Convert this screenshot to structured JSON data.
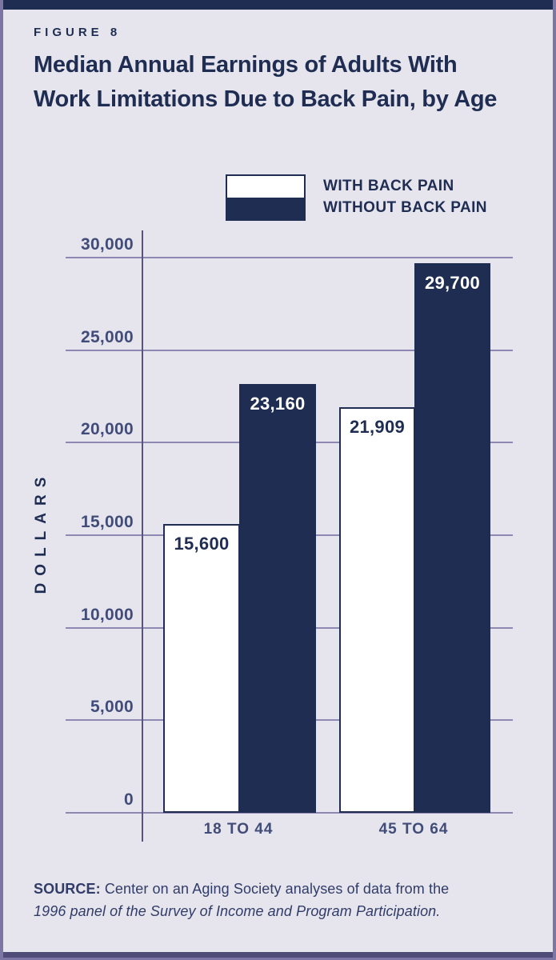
{
  "header": {
    "figure_label": "FIGURE 8",
    "title_lines": [
      "Median Annual Earnings of Adults With",
      "Work Limitations Due to Back Pain, by Age"
    ]
  },
  "legend": {
    "items": [
      {
        "label": "WITH BACK PAIN",
        "swatch_color": "#ffffff"
      },
      {
        "label": "WITHOUT BACK PAIN",
        "swatch_color": "#1f2d52"
      }
    ]
  },
  "chart_data": {
    "type": "bar",
    "title": "Median Annual Earnings of Adults With Work Limitations Due to Back Pain, by Age",
    "categories": [
      "18 TO 44",
      "45 TO 64"
    ],
    "series": [
      {
        "name": "WITH BACK PAIN",
        "values": [
          15600,
          21909
        ],
        "value_labels": [
          "15,600",
          "21,909"
        ],
        "fill": "#ffffff",
        "label_color": "#1f2d52"
      },
      {
        "name": "WITHOUT BACK PAIN",
        "values": [
          23160,
          29700
        ],
        "value_labels": [
          "23,160",
          "29,700"
        ],
        "fill": "#1f2d52",
        "label_color": "#ffffff"
      }
    ],
    "xlabel": "",
    "ylabel": "DOLLARS",
    "ylim": [
      0,
      30000
    ],
    "ytick_step": 5000,
    "ytick_labels": [
      "0",
      "5,000",
      "10,000",
      "15,000",
      "20,000",
      "25,000",
      "30,000"
    ],
    "grid": true,
    "legend_position": "top-right"
  },
  "source": {
    "label": "SOURCE:",
    "text": "Center on an Aging Society analyses of data from the",
    "text_italic": "1996 panel of the Survey of Income and Program Participation."
  },
  "colors": {
    "navy": "#1f2d52",
    "background": "#e6e5ed",
    "grid_line": "#8d89b2",
    "axis_line": "#575482",
    "frame_border": "#7b76a4",
    "tick_text": "#414c78"
  }
}
